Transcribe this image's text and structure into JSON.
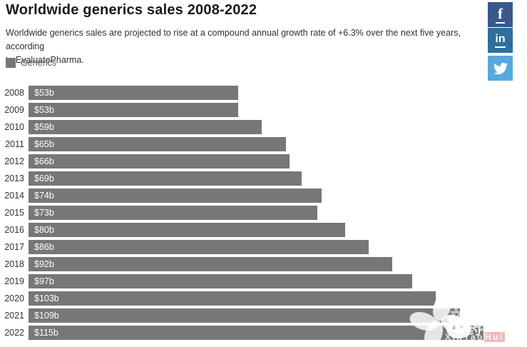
{
  "header": {
    "title": "Worldwide generics sales 2008-2022",
    "subtitle_line1": "Worldwide generics sales are projected to rise at a compound annual growth rate of +6.3% over the next five years, according",
    "subtitle_line2": "to EvaluatePharma."
  },
  "legend": {
    "label": "Generics",
    "swatch_color": "#777777"
  },
  "chart_data": {
    "type": "bar",
    "orientation": "horizontal",
    "title": "Worldwide generics sales 2008-2022",
    "series_name": "Generics",
    "categories": [
      "2008",
      "2009",
      "2010",
      "2011",
      "2012",
      "2013",
      "2014",
      "2015",
      "2016",
      "2017",
      "2018",
      "2019",
      "2020",
      "2021",
      "2022"
    ],
    "values": [
      53,
      53,
      59,
      65,
      66,
      69,
      74,
      73,
      80,
      86,
      92,
      97,
      103,
      109,
      115
    ],
    "labels": [
      "$53b",
      "$53b",
      "$59b",
      "$65b",
      "$66b",
      "$69b",
      "$74b",
      "$73b",
      "$80b",
      "$86b",
      "$92b",
      "$97b",
      "$103b",
      "$109b",
      "$115b"
    ],
    "unit": "billion USD",
    "bar_color": "#777777",
    "xlim": [
      0,
      126
    ],
    "grid": false,
    "legend_position": "top-left",
    "value_labels_inside_bars": true
  },
  "social": {
    "facebook_glyph": "f",
    "linkedin_glyph": "in",
    "colors": {
      "facebook": "#38598c",
      "linkedin": "#2e6f9b",
      "twitter": "#57a9dc"
    }
  },
  "watermark": {
    "brand_large": "新药汇",
    "brand_overlay": "E药经理人",
    "url_prefix": "XinYao",
    "url_mid": "Hui",
    "url_suffix": ".com"
  }
}
